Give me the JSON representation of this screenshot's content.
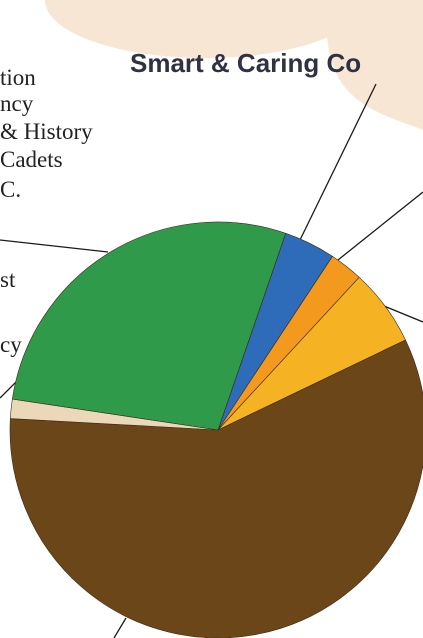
{
  "chart_data": {
    "type": "pie",
    "title": "Smart & Caring Co",
    "slices": [
      {
        "label": "",
        "value": 4.0,
        "color": "#2e6bb8"
      },
      {
        "label": "",
        "value": 2.6,
        "color": "#f39a1e"
      },
      {
        "label": "",
        "value": 6.0,
        "color": "#f5b324"
      },
      {
        "label": "",
        "value": 58.0,
        "color": "#6b4619"
      },
      {
        "label": "",
        "value": 1.5,
        "color": "#ead8b9"
      },
      {
        "label": "",
        "value": 27.9,
        "color": "#2e9a4a"
      }
    ],
    "legend_lines": [
      "tion",
      "ncy",
      "& History",
      "Cadets",
      "C.",
      "st",
      "cy"
    ]
  },
  "colors": {
    "background_blob": "#f7e6d4",
    "slice_border": "#3a2a18",
    "title_color": "#2f3242"
  }
}
